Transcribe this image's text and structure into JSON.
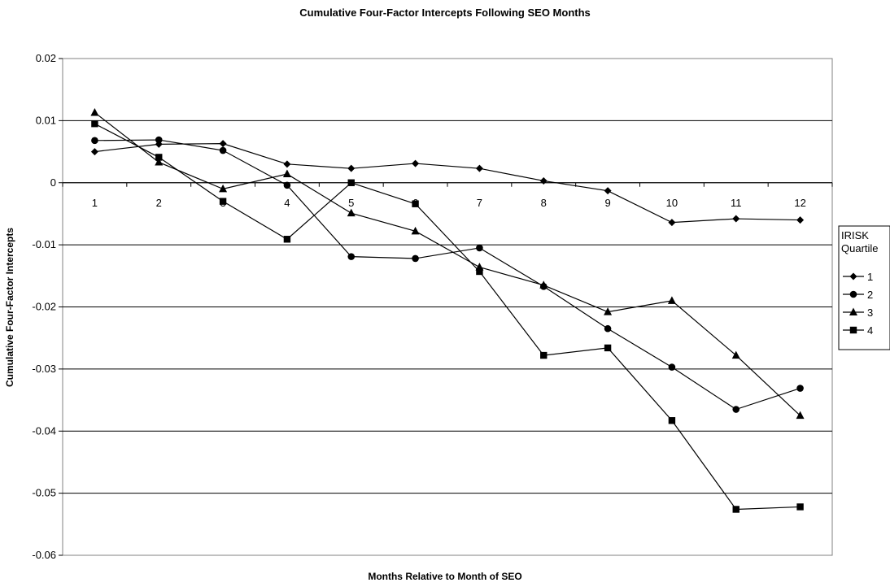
{
  "chart_data": {
    "type": "line",
    "title": "Cumulative Four-Factor Intercepts Following SEO Months",
    "xlabel": "Months Relative to Month of SEO",
    "ylabel": "Cumulative Four-Factor Intercepts",
    "categories": [
      "1",
      "2",
      "3",
      "4",
      "5",
      "6",
      "7",
      "8",
      "9",
      "10",
      "11",
      "12"
    ],
    "ylim": [
      -0.06,
      0.02
    ],
    "yticks": [
      0.02,
      0.01,
      0,
      -0.01,
      -0.02,
      -0.03,
      -0.04,
      -0.05,
      -0.06
    ],
    "ytick_labels": [
      "0.02",
      "0.01",
      "0",
      "-0.01",
      "-0.02",
      "-0.03",
      "-0.04",
      "-0.05",
      "-0.06"
    ],
    "grid": true,
    "legend": {
      "title_lines": [
        "IRISK",
        "Quartile"
      ],
      "placement": "right"
    },
    "series": [
      {
        "name": "1",
        "marker": "diamond",
        "values": [
          0.005,
          0.0062,
          0.0063,
          0.003,
          0.0023,
          0.0031,
          0.0023,
          0.0003,
          -0.0013,
          -0.0064,
          -0.0058,
          -0.006
        ]
      },
      {
        "name": "2",
        "marker": "circle",
        "values": [
          0.0068,
          0.0069,
          0.0052,
          -0.0004,
          -0.0119,
          -0.0122,
          -0.0105,
          -0.0167,
          -0.0235,
          -0.0297,
          -0.0365,
          -0.0331
        ]
      },
      {
        "name": "3",
        "marker": "triangle",
        "values": [
          0.0113,
          0.0033,
          -0.001,
          0.0014,
          -0.0049,
          -0.0078,
          -0.0136,
          -0.0165,
          -0.0208,
          -0.019,
          -0.0278,
          -0.0375
        ]
      },
      {
        "name": "4",
        "marker": "square",
        "values": [
          0.0095,
          0.0041,
          -0.003,
          -0.0091,
          0.0,
          -0.0034,
          -0.0143,
          -0.0278,
          -0.0266,
          -0.0383,
          -0.0526,
          -0.0522
        ]
      }
    ]
  }
}
